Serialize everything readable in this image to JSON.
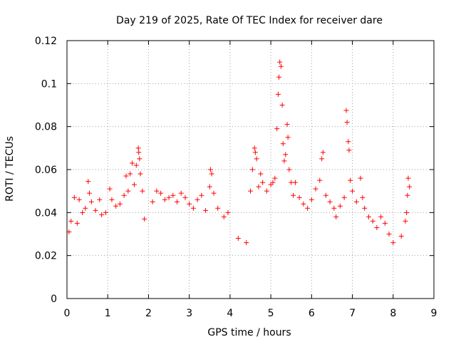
{
  "chart_data": {
    "type": "scatter",
    "marker": "plus",
    "title": "Day 219 of 2025, Rate Of TEC Index for receiver dare",
    "xlabel": "GPS time / hours",
    "ylabel": "ROTI / TECUs",
    "xlim": [
      0,
      9
    ],
    "ylim": [
      0,
      0.12
    ],
    "xticks": [
      "0",
      "1",
      "2",
      "3",
      "4",
      "5",
      "6",
      "7",
      "8",
      "9"
    ],
    "yticks": [
      "0",
      "0.02",
      "0.04",
      "0.06",
      "0.08",
      "0.1",
      "0.12"
    ],
    "grid": true,
    "series_color": "#ff0000",
    "series": [
      {
        "name": "ROTI",
        "points": [
          [
            0.05,
            0.031
          ],
          [
            0.1,
            0.036
          ],
          [
            0.18,
            0.047
          ],
          [
            0.25,
            0.035
          ],
          [
            0.3,
            0.046
          ],
          [
            0.38,
            0.04
          ],
          [
            0.45,
            0.042
          ],
          [
            0.52,
            0.0545
          ],
          [
            0.55,
            0.049
          ],
          [
            0.6,
            0.045
          ],
          [
            0.7,
            0.041
          ],
          [
            0.8,
            0.046
          ],
          [
            0.85,
            0.039
          ],
          [
            0.95,
            0.04
          ],
          [
            1.05,
            0.051
          ],
          [
            1.1,
            0.046
          ],
          [
            1.2,
            0.043
          ],
          [
            1.3,
            0.044
          ],
          [
            1.4,
            0.048
          ],
          [
            1.45,
            0.057
          ],
          [
            1.5,
            0.05
          ],
          [
            1.55,
            0.058
          ],
          [
            1.6,
            0.063
          ],
          [
            1.65,
            0.053
          ],
          [
            1.7,
            0.062
          ],
          [
            1.75,
            0.07
          ],
          [
            1.76,
            0.068
          ],
          [
            1.78,
            0.065
          ],
          [
            1.8,
            0.058
          ],
          [
            1.85,
            0.05
          ],
          [
            1.9,
            0.037
          ],
          [
            2.1,
            0.045
          ],
          [
            2.2,
            0.05
          ],
          [
            2.3,
            0.049
          ],
          [
            2.4,
            0.046
          ],
          [
            2.5,
            0.047
          ],
          [
            2.6,
            0.048
          ],
          [
            2.7,
            0.045
          ],
          [
            2.8,
            0.049
          ],
          [
            2.9,
            0.047
          ],
          [
            3.0,
            0.044
          ],
          [
            3.1,
            0.042
          ],
          [
            3.2,
            0.046
          ],
          [
            3.3,
            0.048
          ],
          [
            3.4,
            0.041
          ],
          [
            3.5,
            0.052
          ],
          [
            3.52,
            0.06
          ],
          [
            3.55,
            0.058
          ],
          [
            3.6,
            0.049
          ],
          [
            3.7,
            0.042
          ],
          [
            3.85,
            0.038
          ],
          [
            3.95,
            0.04
          ],
          [
            4.2,
            0.028
          ],
          [
            4.4,
            0.026
          ],
          [
            4.5,
            0.05
          ],
          [
            4.55,
            0.06
          ],
          [
            4.6,
            0.07
          ],
          [
            4.62,
            0.068
          ],
          [
            4.65,
            0.065
          ],
          [
            4.7,
            0.052
          ],
          [
            4.75,
            0.058
          ],
          [
            4.8,
            0.054
          ],
          [
            4.9,
            0.05
          ],
          [
            5.0,
            0.053
          ],
          [
            5.05,
            0.054
          ],
          [
            5.1,
            0.056
          ],
          [
            5.15,
            0.079
          ],
          [
            5.18,
            0.095
          ],
          [
            5.2,
            0.103
          ],
          [
            5.22,
            0.11
          ],
          [
            5.25,
            0.108
          ],
          [
            5.28,
            0.09
          ],
          [
            5.3,
            0.072
          ],
          [
            5.33,
            0.064
          ],
          [
            5.36,
            0.067
          ],
          [
            5.4,
            0.081
          ],
          [
            5.42,
            0.075
          ],
          [
            5.45,
            0.06
          ],
          [
            5.5,
            0.054
          ],
          [
            5.55,
            0.048
          ],
          [
            5.6,
            0.054
          ],
          [
            5.7,
            0.047
          ],
          [
            5.8,
            0.044
          ],
          [
            5.9,
            0.042
          ],
          [
            6.0,
            0.046
          ],
          [
            6.1,
            0.051
          ],
          [
            6.2,
            0.055
          ],
          [
            6.25,
            0.065
          ],
          [
            6.28,
            0.068
          ],
          [
            6.35,
            0.048
          ],
          [
            6.45,
            0.045
          ],
          [
            6.55,
            0.042
          ],
          [
            6.6,
            0.038
          ],
          [
            6.7,
            0.043
          ],
          [
            6.8,
            0.047
          ],
          [
            6.85,
            0.0875
          ],
          [
            6.87,
            0.082
          ],
          [
            6.9,
            0.073
          ],
          [
            6.92,
            0.069
          ],
          [
            6.95,
            0.055
          ],
          [
            7.0,
            0.05
          ],
          [
            7.1,
            0.045
          ],
          [
            7.2,
            0.056
          ],
          [
            7.25,
            0.047
          ],
          [
            7.3,
            0.042
          ],
          [
            7.4,
            0.038
          ],
          [
            7.5,
            0.036
          ],
          [
            7.6,
            0.033
          ],
          [
            7.7,
            0.038
          ],
          [
            7.8,
            0.035
          ],
          [
            7.9,
            0.03
          ],
          [
            8.0,
            0.026
          ],
          [
            8.2,
            0.029
          ],
          [
            8.3,
            0.036
          ],
          [
            8.33,
            0.04
          ],
          [
            8.35,
            0.048
          ],
          [
            8.37,
            0.056
          ],
          [
            8.4,
            0.052
          ]
        ]
      }
    ]
  }
}
